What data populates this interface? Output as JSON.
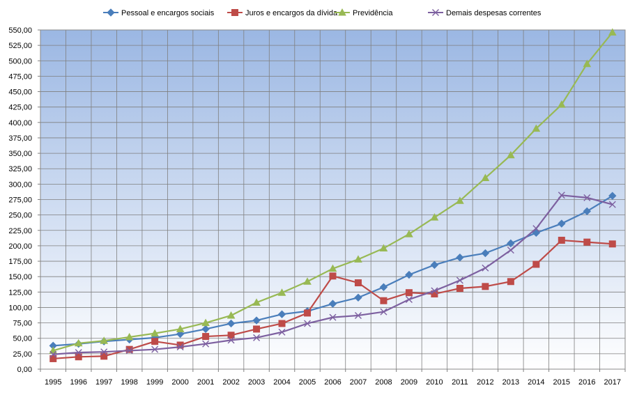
{
  "chart_data": {
    "type": "line",
    "title": "",
    "xlabel": "",
    "ylabel": "",
    "ylim": [
      0,
      550
    ],
    "ytick_step": 25,
    "grid": true,
    "legend_position": "top",
    "categories": [
      "1995",
      "1996",
      "1997",
      "1998",
      "1999",
      "2000",
      "2001",
      "2002",
      "2003",
      "2004",
      "2005",
      "2006",
      "2007",
      "2008",
      "2009",
      "2010",
      "2011",
      "2012",
      "2013",
      "2014",
      "2015",
      "2016",
      "2017"
    ],
    "yticks": [
      "0,00",
      "25,00",
      "50,00",
      "75,00",
      "100,00",
      "125,00",
      "150,00",
      "175,00",
      "200,00",
      "225,00",
      "250,00",
      "275,00",
      "300,00",
      "325,00",
      "350,00",
      "375,00",
      "400,00",
      "425,00",
      "450,00",
      "475,00",
      "500,00",
      "525,00",
      "550,00"
    ],
    "series": [
      {
        "name": "Pessoal e encargos sociais",
        "color": "#4a7ebb",
        "marker": "diamond",
        "values": [
          38,
          41,
          45,
          48,
          51,
          57,
          65,
          74,
          79,
          89,
          94,
          106,
          116,
          133,
          153,
          169,
          181,
          188,
          204,
          221,
          236,
          256,
          281
        ]
      },
      {
        "name": "Juros e encargos da dívida",
        "color": "#be4b48",
        "marker": "square",
        "values": [
          17,
          20,
          21,
          32,
          45,
          39,
          53,
          55,
          65,
          74,
          91,
          151,
          140,
          111,
          124,
          122,
          131,
          134,
          142,
          170,
          209,
          206,
          203
        ]
      },
      {
        "name": "Previdência",
        "color": "#98b954",
        "marker": "triangle",
        "values": [
          30,
          42,
          46,
          52,
          58,
          65,
          75,
          87,
          108,
          124,
          142,
          163,
          178,
          196,
          219,
          246,
          273,
          310,
          347,
          390,
          429,
          495,
          546
        ]
      },
      {
        "name": "Demais despesas correntes",
        "color": "#7d60a0",
        "marker": "x",
        "values": [
          24,
          27,
          28,
          30,
          32,
          36,
          41,
          47,
          51,
          60,
          74,
          84,
          87,
          93,
          113,
          127,
          144,
          164,
          193,
          228,
          282,
          278,
          267
        ]
      }
    ]
  }
}
